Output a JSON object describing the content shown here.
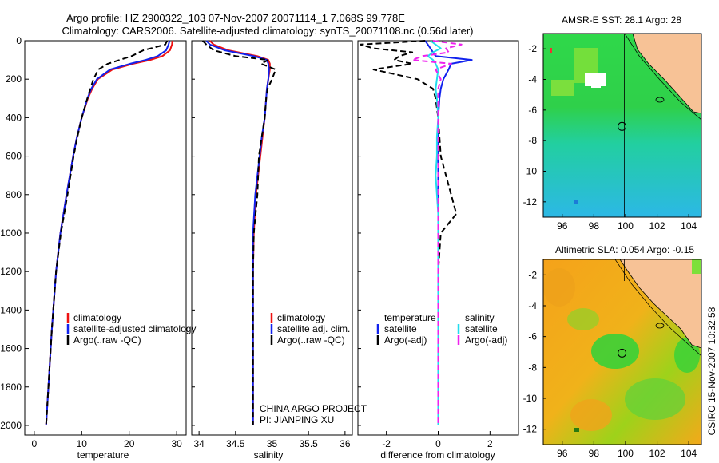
{
  "title_line1": "Argo profile: HZ 2900322_103 07-Nov-2007 20071114_1 7.068S 99.778E",
  "title_line2": "Climatology: CARS2006. Satellite-adjusted climatology: synTS_20071108.nc (0.56d later)",
  "side_label": "CSIRO 15-Nov-2007 10:32:58",
  "credit_line1": "CHINA ARGO PROJECT",
  "credit_line2": "PI: JIANPING XU",
  "colors": {
    "climatology": "#ee1111",
    "satellite": "#1122ee",
    "argo": "#000000",
    "satellite_diff": "#22ddee",
    "argo_diff": "#ee22ee",
    "land": "#f7c296"
  },
  "chart_data": [
    {
      "type": "line",
      "xlabel": "temperature",
      "ylabel": "",
      "xlim": [
        -2,
        32
      ],
      "ylim": [
        2050,
        0
      ],
      "xticks": [
        0,
        10,
        20,
        30
      ],
      "yticks": [
        0,
        200,
        400,
        600,
        800,
        1000,
        1200,
        1400,
        1600,
        1800,
        2000
      ],
      "legend": [
        "climatology",
        "satellite-adjusted climatology",
        "Argo(..raw -QC)"
      ],
      "depth": [
        0,
        20,
        50,
        80,
        100,
        120,
        150,
        200,
        250,
        300,
        400,
        500,
        600,
        800,
        1000,
        1200,
        1500,
        2000
      ],
      "series": [
        {
          "name": "climatology",
          "values": [
            29.1,
            29.0,
            28.6,
            27.0,
            24.5,
            20.8,
            16.5,
            13.4,
            12.2,
            11.3,
            10.0,
            9.0,
            8.2,
            6.8,
            5.5,
            4.6,
            3.7,
            2.5
          ]
        },
        {
          "name": "satellite-adjusted climatology",
          "values": [
            28.5,
            28.3,
            27.8,
            26.0,
            23.5,
            20.2,
            16.0,
            13.2,
            12.0,
            11.2,
            10.0,
            9.0,
            8.2,
            6.8,
            5.5,
            4.6,
            3.7,
            2.5
          ]
        },
        {
          "name": "Argo(..raw -QC)",
          "values": [
            28.0,
            27.6,
            23.0,
            20.5,
            18.0,
            15.5,
            13.5,
            12.5,
            11.8,
            11.2,
            10.0,
            9.1,
            8.3,
            7.0,
            5.6,
            4.6,
            3.7,
            2.5
          ]
        }
      ]
    },
    {
      "type": "line",
      "xlabel": "salinity",
      "ylabel": "",
      "xlim": [
        33.9,
        36.1
      ],
      "ylim": [
        2050,
        0
      ],
      "xticks": [
        34,
        34.5,
        35,
        35.5,
        36
      ],
      "legend": [
        "climatology",
        "satellite adj. clim.",
        "Argo(..raw -QC)"
      ],
      "depth": [
        0,
        20,
        50,
        80,
        100,
        120,
        150,
        200,
        250,
        300,
        400,
        500,
        600,
        800,
        1000,
        1200,
        1500,
        2000
      ],
      "series": [
        {
          "name": "climatology",
          "values": [
            34.15,
            34.2,
            34.4,
            34.8,
            34.95,
            34.97,
            34.97,
            34.95,
            34.93,
            34.92,
            34.9,
            34.87,
            34.84,
            34.78,
            34.75,
            34.74,
            34.74,
            34.74
          ]
        },
        {
          "name": "satellite adj. clim.",
          "values": [
            34.1,
            34.15,
            34.35,
            34.75,
            34.93,
            34.95,
            34.96,
            34.95,
            34.93,
            34.92,
            34.9,
            34.86,
            34.83,
            34.77,
            34.74,
            34.74,
            34.74,
            34.74
          ]
        },
        {
          "name": "Argo(..raw -QC)",
          "values": [
            34.05,
            34.1,
            34.2,
            34.5,
            34.95,
            34.85,
            35.05,
            35.0,
            34.94,
            34.92,
            34.9,
            34.86,
            34.82,
            34.8,
            34.75,
            34.74,
            34.74,
            34.74
          ]
        }
      ]
    },
    {
      "type": "line",
      "xlabel": "difference from climatology",
      "ylabel": "",
      "xlim": [
        -3.1,
        3.1
      ],
      "ylim": [
        2050,
        0
      ],
      "xticks": [
        -2,
        0,
        2
      ],
      "legend_temperature": [
        "temperature",
        "satellite",
        "Argo(-adj)"
      ],
      "legend_salinity": [
        "salinity",
        "satellite",
        "Argo(-adj)"
      ],
      "depth": [
        0,
        20,
        40,
        60,
        80,
        100,
        120,
        150,
        200,
        250,
        300,
        400,
        500,
        600,
        700,
        800,
        900,
        1000,
        1200,
        1500,
        2000
      ],
      "series": [
        {
          "name": "temperature satellite",
          "values": [
            -0.5,
            -0.4,
            -0.3,
            -0.2,
            -0.1,
            1.3,
            0.5,
            0.4,
            0.2,
            0.1,
            0.05,
            0.0,
            0.0,
            0.0,
            0.0,
            0.0,
            0.0,
            0.0,
            0.0,
            0.0,
            0.0
          ]
        },
        {
          "name": "temperature Argo(-adj)",
          "values": [
            -0.5,
            -3.0,
            -2.5,
            -1.0,
            -1.5,
            -1.7,
            -1.0,
            -2.5,
            -0.8,
            -0.2,
            -0.1,
            0.0,
            0.05,
            0.1,
            0.3,
            0.5,
            0.7,
            0.1,
            0.0,
            0.0,
            0.0
          ]
        },
        {
          "name": "salinity satellite",
          "values": [
            -0.3,
            -0.1,
            0.1,
            -0.2,
            -0.4,
            -0.2,
            -0.1,
            0.0,
            -0.05,
            -0.1,
            -0.05,
            0.0,
            -0.05,
            -0.05,
            -0.1,
            -0.05,
            0.0,
            0.0,
            0.0,
            0.0,
            0.0
          ]
        },
        {
          "name": "salinity Argo(-adj)",
          "values": [
            -0.2,
            0.9,
            0.3,
            0.4,
            -0.6,
            -1.0,
            0.5,
            -0.1,
            0.1,
            0.0,
            0.0,
            0.0,
            0.0,
            0.0,
            0.0,
            0.0,
            0.0,
            0.0,
            0.0,
            0.0,
            0.0
          ]
        }
      ]
    },
    {
      "type": "heatmap",
      "title": "AMSR-E SST: 28.1 Argo: 28",
      "xlim": [
        94.8,
        104.8
      ],
      "ylim": [
        -13.0,
        -1.0
      ],
      "xticks": [
        96,
        98,
        100,
        102,
        104
      ],
      "yticks": [
        -2,
        -4,
        -6,
        -8,
        -10,
        -12
      ],
      "argo_position": [
        99.778,
        -7.068
      ]
    },
    {
      "type": "heatmap",
      "title": "Altimetric SLA: 0.054 Argo: -0.15",
      "xlim": [
        94.8,
        104.8
      ],
      "ylim": [
        -13.0,
        -1.0
      ],
      "xticks": [
        96,
        98,
        100,
        102,
        104
      ],
      "yticks": [
        -2,
        -4,
        -6,
        -8,
        -10,
        -12
      ],
      "argo_position": [
        99.778,
        -7.068
      ]
    }
  ]
}
